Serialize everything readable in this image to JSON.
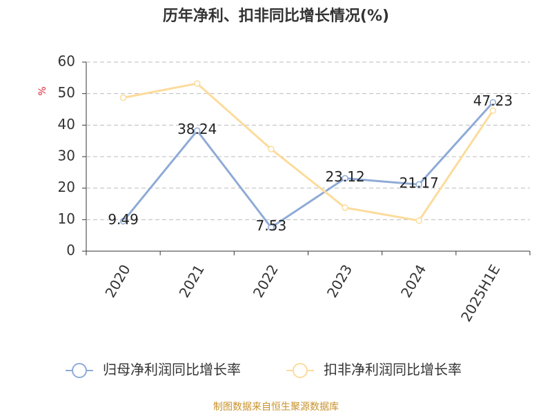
{
  "chart_data": {
    "type": "line",
    "title": "历年净利、扣非同比增长情况(%)",
    "y_label": "%",
    "categories": [
      "2020",
      "2021",
      "2022",
      "2023",
      "2024",
      "2025H1E"
    ],
    "series": [
      {
        "name": "归母净利润同比增长率",
        "color": "#8eaad6",
        "values": [
          9.49,
          38.24,
          7.53,
          23.12,
          21.17,
          47.23
        ],
        "show_labels": true
      },
      {
        "name": "扣非净利润同比增长率",
        "color": "#fcdb9b",
        "values": [
          48.7,
          53.2,
          32.4,
          13.8,
          9.7,
          44.6
        ],
        "show_labels": false
      }
    ],
    "ylim": [
      0,
      60
    ],
    "yticks": [
      0,
      10,
      20,
      30,
      40,
      50,
      60
    ],
    "grid": true,
    "source": "制图数据来自恒生聚源数据库"
  }
}
